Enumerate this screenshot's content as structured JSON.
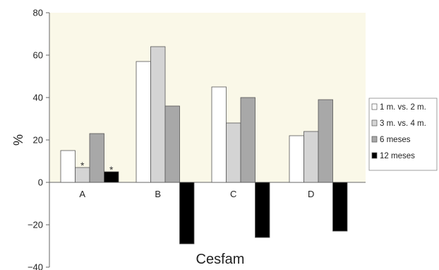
{
  "chart_data": {
    "type": "bar",
    "categories": [
      "A",
      "B",
      "C",
      "D"
    ],
    "series": [
      {
        "name": "1 m. vs. 2 m.",
        "values": [
          15,
          57,
          45,
          22
        ],
        "color": "#ffffff"
      },
      {
        "name": "3 m. vs. 4 m.",
        "values": [
          7,
          64,
          28,
          24
        ],
        "color": "#d4d4d4"
      },
      {
        "name": "6 meses",
        "values": [
          23,
          36,
          40,
          39
        ],
        "color": "#a8a8a8"
      },
      {
        "name": "12 meses",
        "values": [
          5,
          -29,
          -26,
          -23
        ],
        "color": "#000000"
      }
    ],
    "annotations": [
      {
        "text": "*",
        "category": "A",
        "series": "3 m. vs. 4 m."
      },
      {
        "text": "*",
        "category": "A",
        "series": "12 meses"
      }
    ],
    "xlabel": "Cesfam",
    "ylabel": "%",
    "ylim": [
      -40,
      80
    ],
    "yticks": [
      "80",
      "60",
      "40",
      "20",
      "0",
      "−20",
      "−40"
    ],
    "grid": false,
    "legend_position": "right",
    "plot_background": "#faf8e8"
  }
}
